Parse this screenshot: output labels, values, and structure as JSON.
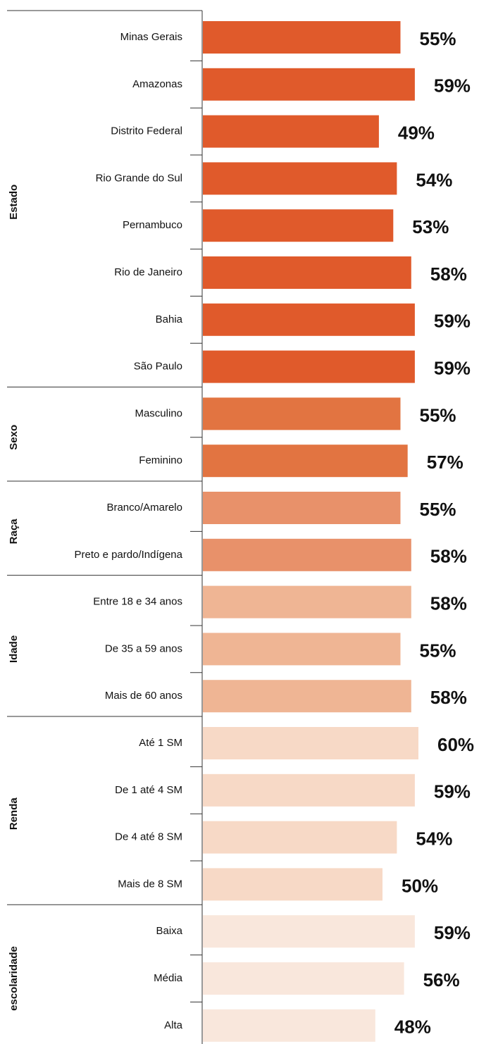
{
  "chart_data": {
    "type": "bar",
    "groups": [
      {
        "name": "Estado",
        "color": "#e05a2b",
        "categories": [
          "Minas Gerais",
          "Amazonas",
          "Distrito Federal",
          "Rio Grande do Sul",
          "Pernambuco",
          "Rio de Janeiro",
          "Bahia",
          "São Paulo"
        ],
        "values": [
          55,
          59,
          49,
          54,
          53,
          58,
          59,
          59
        ],
        "value_labels": [
          "55%",
          "59%",
          "49%",
          "54%",
          "53%",
          "58%",
          "59%",
          "59%"
        ]
      },
      {
        "name": "Sexo",
        "color": "#e27441",
        "categories": [
          "Masculino",
          "Feminino"
        ],
        "values": [
          55,
          57
        ],
        "value_labels": [
          "55%",
          "57%"
        ]
      },
      {
        "name": "Raça",
        "color": "#e8916a",
        "categories": [
          "Branco/Amarelo",
          "Preto e pardo/Indígena"
        ],
        "values": [
          55,
          58
        ],
        "value_labels": [
          "55%",
          "58%"
        ]
      },
      {
        "name": "Idade",
        "color": "#efb594",
        "categories": [
          "Entre 18 e 34 anos",
          "De 35 a 59 anos",
          "Mais de 60 anos"
        ],
        "values": [
          58,
          55,
          58
        ],
        "value_labels": [
          "58%",
          "55%",
          "58%"
        ]
      },
      {
        "name": "Renda",
        "color": "#f7d9c6",
        "categories": [
          "Até 1 SM",
          "De 1 até 4 SM",
          "De 4 até 8 SM",
          "Mais de 8 SM"
        ],
        "values": [
          60,
          59,
          54,
          50
        ],
        "value_labels": [
          "60%",
          "59%",
          "54%",
          "50%"
        ]
      },
      {
        "name": "escolaridade",
        "color": "#f9e7dc",
        "categories": [
          "Baixa",
          "Média",
          "Alta"
        ],
        "values": [
          59,
          56,
          48
        ],
        "value_labels": [
          "59%",
          "56%",
          "48%"
        ]
      }
    ]
  }
}
